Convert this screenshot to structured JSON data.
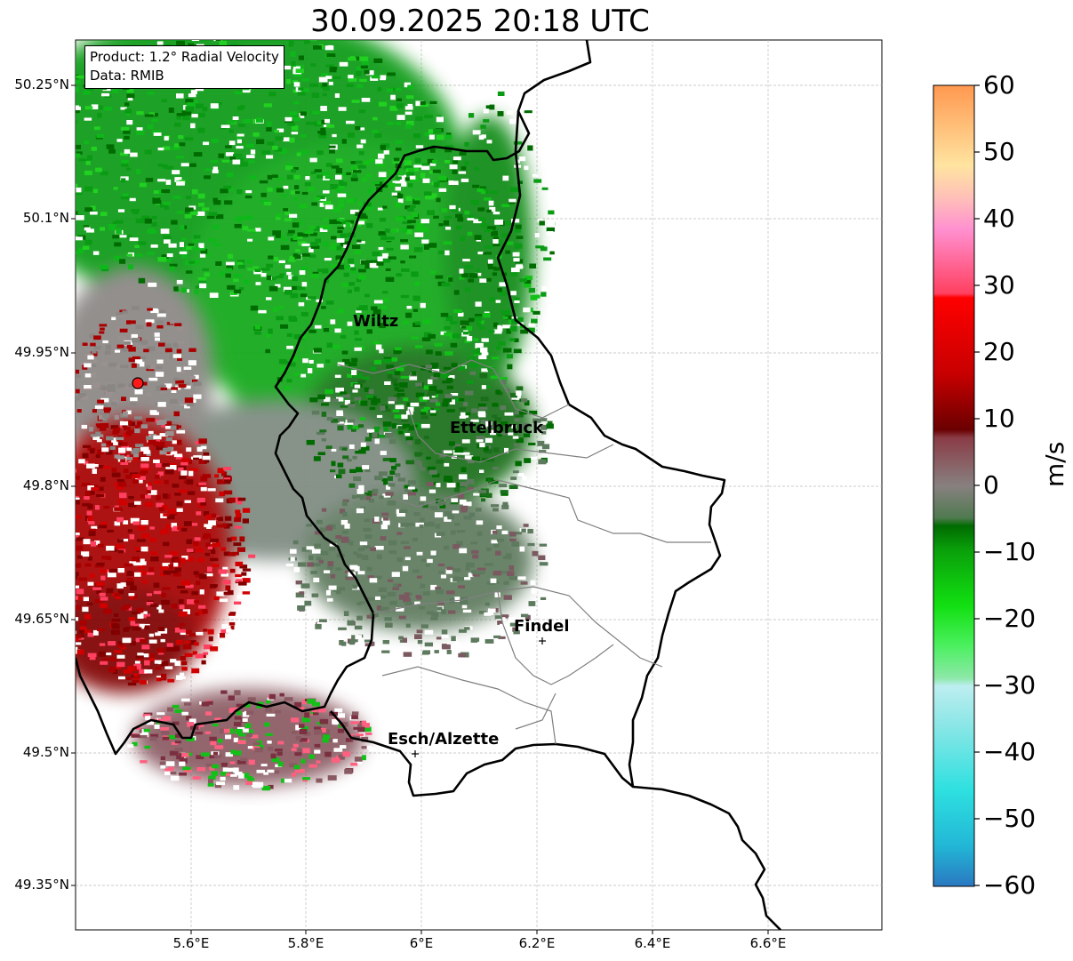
{
  "title": "30.09.2025 20:18 UTC",
  "info": {
    "product": "Product: 1.2° Radial Velocity",
    "source": "Data: RMIB"
  },
  "lat_ticks": [
    "50.25°N",
    "50.1°N",
    "49.95°N",
    "49.8°N",
    "49.65°N",
    "49.5°N",
    "49.35°N"
  ],
  "lon_ticks": [
    "5.6°E",
    "5.8°E",
    "6°E",
    "6.2°E",
    "6.4°E",
    "6.6°E"
  ],
  "cities": [
    {
      "name": "Wiltz"
    },
    {
      "name": "Ettelbruck"
    },
    {
      "name": "Findel"
    },
    {
      "name": "Esch/Alzette"
    }
  ],
  "colorbar": {
    "label": "m/s",
    "min": -60,
    "max": 60,
    "ticks": [
      "60",
      "50",
      "40",
      "30",
      "20",
      "10",
      "0",
      "−10",
      "−20",
      "−30",
      "−40",
      "−50",
      "−60"
    ]
  },
  "colors": {
    "radar_marker": "#ff1a1a",
    "border": "#000000",
    "canton": "#808080"
  }
}
